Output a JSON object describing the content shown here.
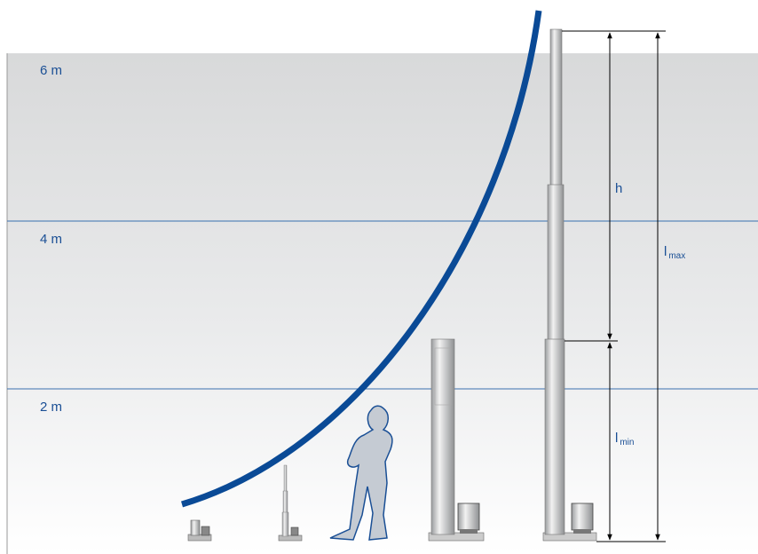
{
  "height_labels": [
    "6 m",
    "4 m",
    "2 m"
  ],
  "dimensions": {
    "h": "h",
    "l_max": {
      "symbol": "l",
      "subscript": "max"
    },
    "l_min": {
      "symbol": "l",
      "subscript": "min"
    }
  }
}
